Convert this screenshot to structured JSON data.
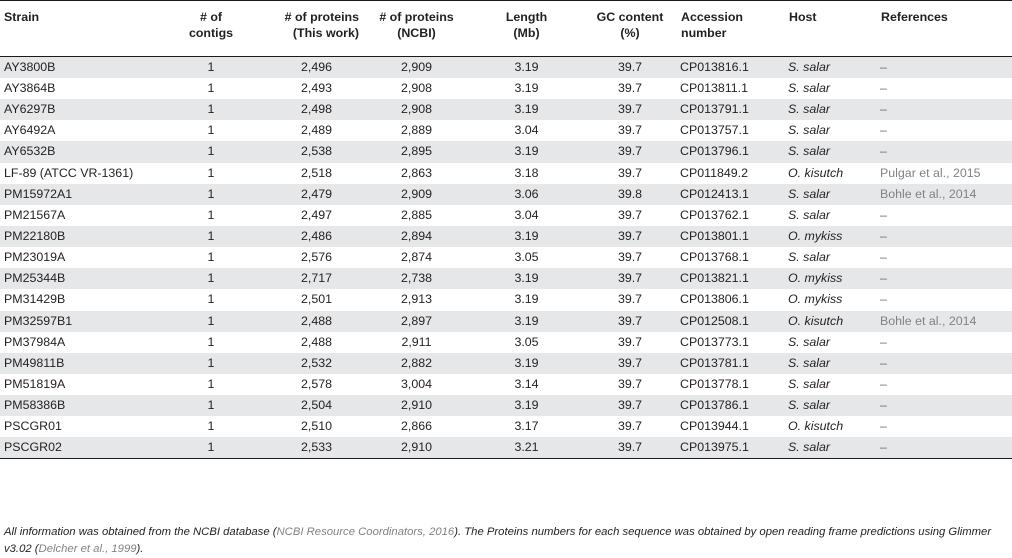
{
  "table": {
    "headers": [
      [
        "Strain"
      ],
      [
        "# of",
        "contigs"
      ],
      [
        "# of proteins",
        "(This work)"
      ],
      [
        "# of proteins",
        "(NCBI)"
      ],
      [
        "Length",
        "(Mb)"
      ],
      [
        "GC content",
        "(%)"
      ],
      [
        "Accession",
        "number"
      ],
      [
        "Host"
      ],
      [
        "References"
      ]
    ],
    "rows": [
      [
        "AY3800B",
        "1",
        "2,496",
        "2,909",
        "3.19",
        "39.7",
        "CP013816.1",
        "S. salar",
        "–"
      ],
      [
        "AY3864B",
        "1",
        "2,493",
        "2,908",
        "3.19",
        "39.7",
        "CP013811.1",
        "S. salar",
        "–"
      ],
      [
        "AY6297B",
        "1",
        "2,498",
        "2,908",
        "3.19",
        "39.7",
        "CP013791.1",
        "S. salar",
        "–"
      ],
      [
        "AY6492A",
        "1",
        "2,489",
        "2,889",
        "3.04",
        "39.7",
        "CP013757.1",
        "S. salar",
        "–"
      ],
      [
        "AY6532B",
        "1",
        "2,538",
        "2,895",
        "3.19",
        "39.7",
        "CP013796.1",
        "S. salar",
        "–"
      ],
      [
        "LF-89 (ATCC VR-1361)",
        "1",
        "2,518",
        "2,863",
        "3.18",
        "39.7",
        "CP011849.2",
        "O. kisutch",
        "Pulgar et al., 2015"
      ],
      [
        "PM15972A1",
        "1",
        "2,479",
        "2,909",
        "3.06",
        "39.8",
        "CP012413.1",
        "S. salar",
        "Bohle et al., 2014"
      ],
      [
        "PM21567A",
        "1",
        "2,497",
        "2,885",
        "3.04",
        "39.7",
        "CP013762.1",
        "S. salar",
        "–"
      ],
      [
        "PM22180B",
        "1",
        "2,486",
        "2,894",
        "3.19",
        "39.7",
        "CP013801.1",
        "O. mykiss",
        "–"
      ],
      [
        "PM23019A",
        "1",
        "2,576",
        "2,874",
        "3.05",
        "39.7",
        "CP013768.1",
        "S. salar",
        "–"
      ],
      [
        "PM25344B",
        "1",
        "2,717",
        "2,738",
        "3.19",
        "39.7",
        "CP013821.1",
        "O. mykiss",
        "–"
      ],
      [
        "PM31429B",
        "1",
        "2,501",
        "2,913",
        "3.19",
        "39.7",
        "CP013806.1",
        "O. mykiss",
        "–"
      ],
      [
        "PM32597B1",
        "1",
        "2,488",
        "2,897",
        "3.19",
        "39.7",
        "CP012508.1",
        "O. kisutch",
        "Bohle et al., 2014"
      ],
      [
        "PM37984A",
        "1",
        "2,488",
        "2,911",
        "3.05",
        "39.7",
        "CP013773.1",
        "S. salar",
        "–"
      ],
      [
        "PM49811B",
        "1",
        "2,532",
        "2,882",
        "3.19",
        "39.7",
        "CP013781.1",
        "S. salar",
        "–"
      ],
      [
        "PM51819A",
        "1",
        "2,578",
        "3,004",
        "3.14",
        "39.7",
        "CP013778.1",
        "S. salar",
        "–"
      ],
      [
        "PM58386B",
        "1",
        "2,504",
        "2,910",
        "3.19",
        "39.7",
        "CP013786.1",
        "S. salar",
        "–"
      ],
      [
        "PSCGR01",
        "1",
        "2,510",
        "2,866",
        "3.17",
        "39.7",
        "CP013944.1",
        "O. kisutch",
        "–"
      ],
      [
        "PSCGR02",
        "1",
        "2,533",
        "2,910",
        "3.21",
        "39.7",
        "CP013975.1",
        "S. salar",
        "–"
      ]
    ]
  },
  "footnote": {
    "part1": "All information was obtained from the NCBI database (",
    "cite1": "NCBI Resource Coordinators, 2016",
    "part2": "). The Proteins numbers for each sequence was obtained by open reading frame predictions using Glimmer v3.02 (",
    "cite2": "Delcher et al., 1999",
    "part3": ")."
  }
}
